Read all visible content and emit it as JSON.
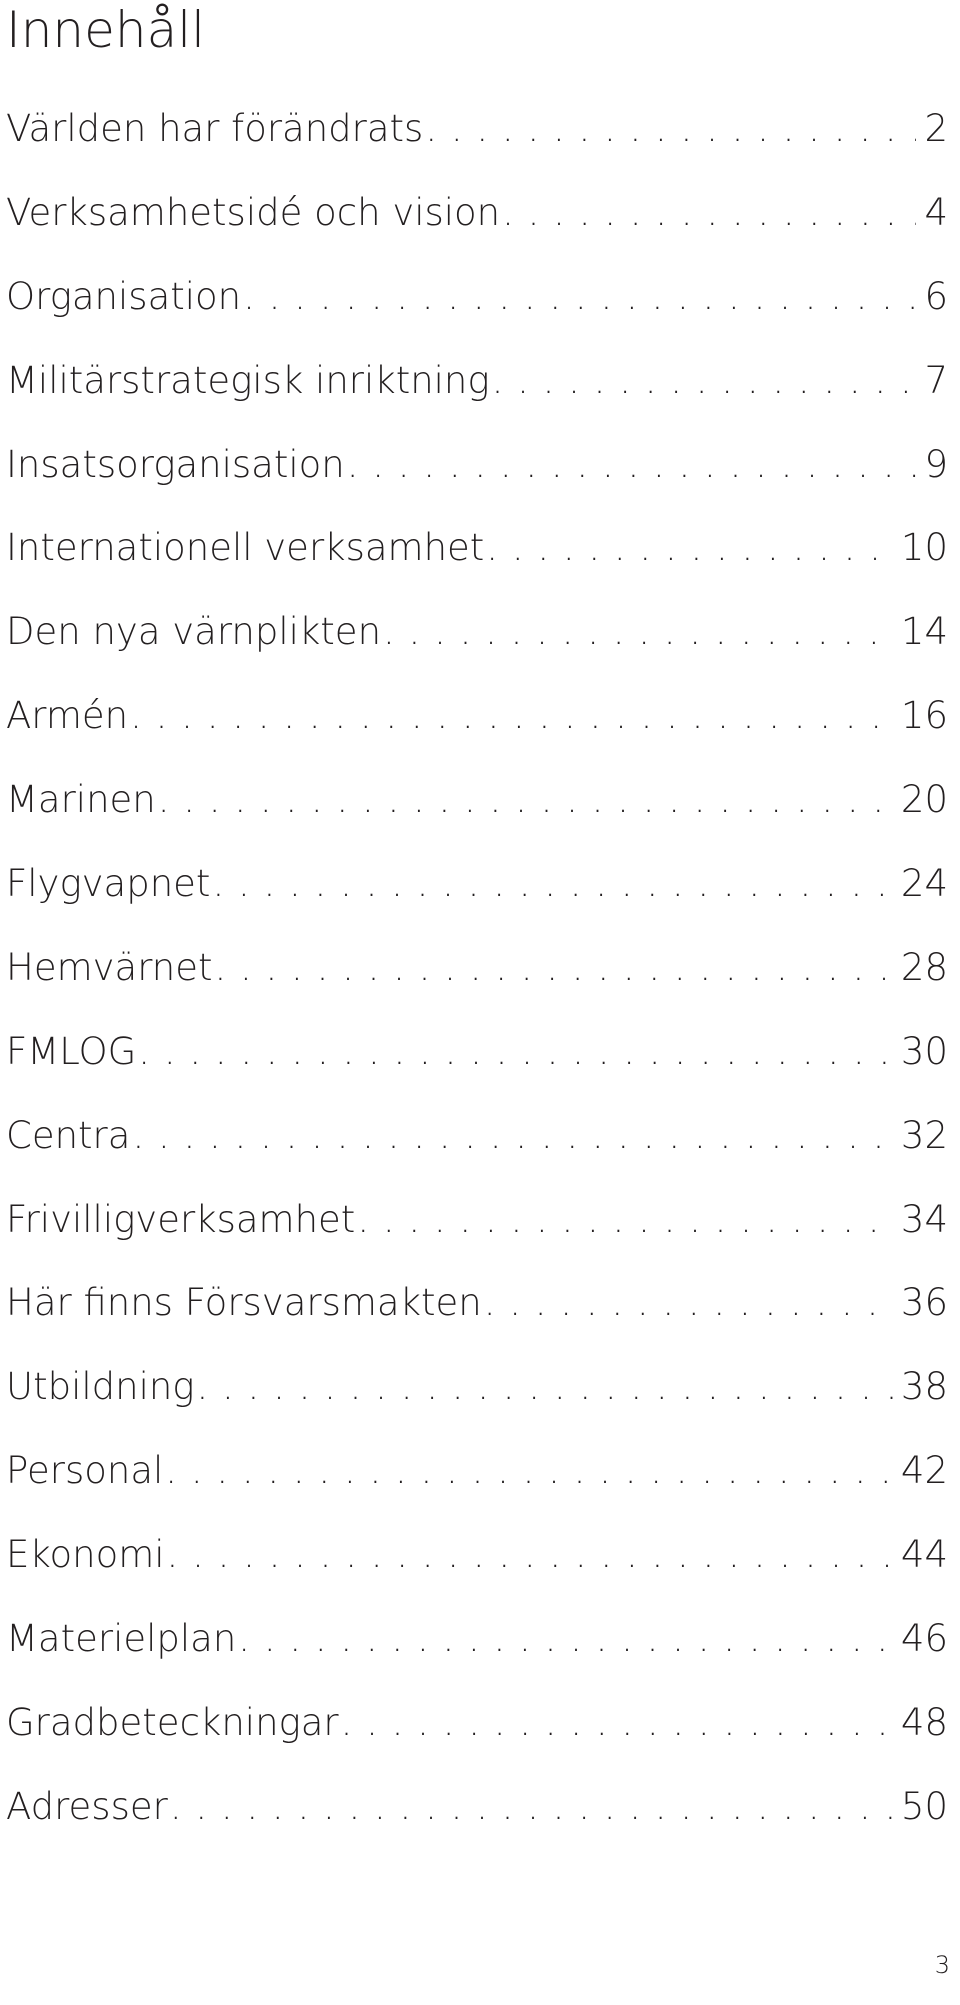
{
  "heading": "Innehåll",
  "toc": [
    {
      "label": "Världen har förändrats",
      "page": "2"
    },
    {
      "label": "Verksamhetsidé och vision",
      "page": "4"
    },
    {
      "label": "Organisation",
      "page": "6"
    },
    {
      "label": "Militärstrategisk inriktning",
      "page": "7"
    },
    {
      "label": "Insatsorganisation",
      "page": "9"
    },
    {
      "label": "Internationell verksamhet",
      "page": "10"
    },
    {
      "label": "Den nya värnplikten",
      "page": "14"
    },
    {
      "label": "Armén",
      "page": "16"
    },
    {
      "label": "Marinen",
      "page": "20"
    },
    {
      "label": "Flygvapnet",
      "page": "24"
    },
    {
      "label": "Hemvärnet",
      "page": "28"
    },
    {
      "label": "FMLOG",
      "page": "30"
    },
    {
      "label": "Centra",
      "page": "32"
    },
    {
      "label": "Frivilligverksamhet",
      "page": "34"
    },
    {
      "label": "Här finns Försvarsmakten",
      "page": "36"
    },
    {
      "label": "Utbildning",
      "page": "38"
    },
    {
      "label": "Personal",
      "page": "42"
    },
    {
      "label": "Ekonomi",
      "page": "44"
    },
    {
      "label": "Materielplan",
      "page": "46"
    },
    {
      "label": "Gradbeteckningar",
      "page": "48"
    },
    {
      "label": "Adresser",
      "page": "50"
    }
  ],
  "page_number": "3"
}
